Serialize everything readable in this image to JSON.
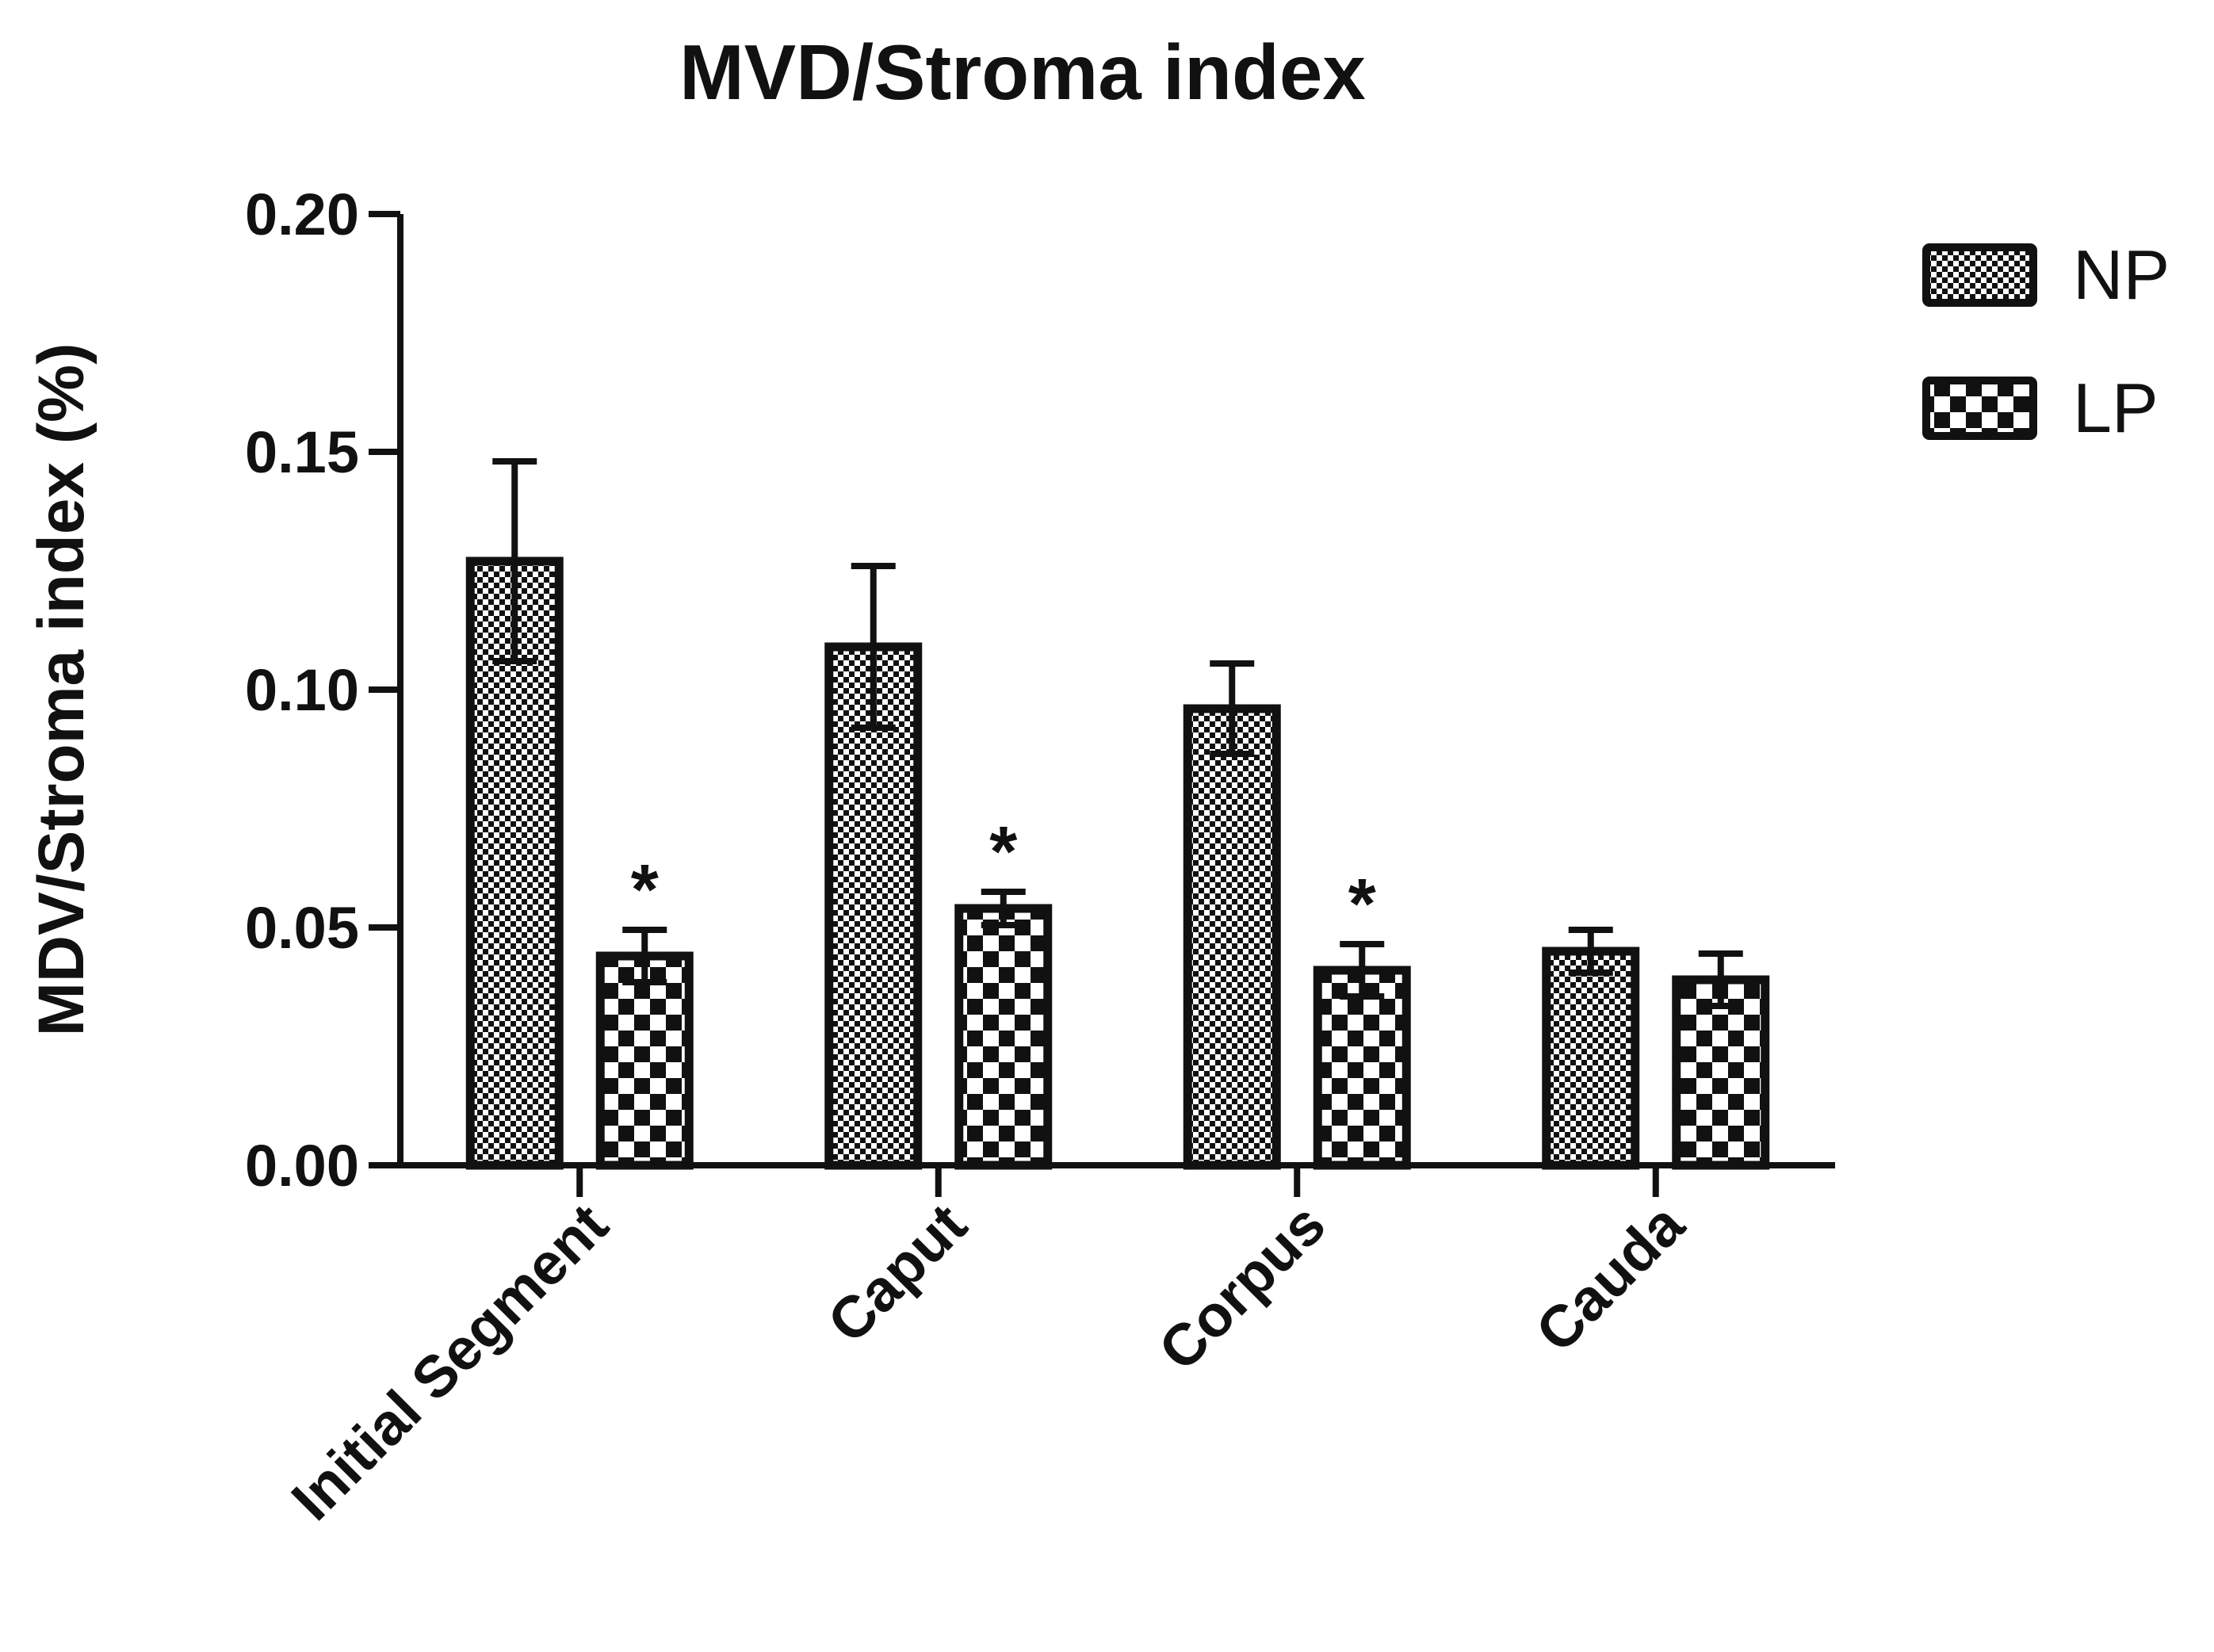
{
  "chart_data": {
    "type": "bar",
    "title": "MVD/Stroma index",
    "xlabel": "",
    "ylabel": "MDV/Stroma index (%)",
    "ylim": [
      0,
      0.2
    ],
    "yticks": [
      0.0,
      0.05,
      0.1,
      0.15,
      0.2
    ],
    "ytick_labels": [
      "0.00",
      "0.05",
      "0.10",
      "0.15",
      "0.20"
    ],
    "categories": [
      "Initial Segment",
      "Caput",
      "Corpus",
      "Cauda"
    ],
    "series": [
      {
        "name": "NP",
        "pattern": "fine-checker",
        "values": [
          0.127,
          0.109,
          0.096,
          0.045
        ],
        "errors": [
          0.021,
          0.017,
          0.0095,
          0.0045
        ],
        "significance": [
          "",
          "",
          "",
          ""
        ]
      },
      {
        "name": "LP",
        "pattern": "coarse-checker",
        "values": [
          0.044,
          0.054,
          0.041,
          0.039
        ],
        "errors": [
          0.0055,
          0.0035,
          0.0055,
          0.0055
        ],
        "significance": [
          "*",
          "*",
          "*",
          ""
        ]
      }
    ],
    "legend_position": "top-right",
    "grid": false,
    "colors": {
      "ink": "#111111",
      "background": "#ffffff"
    }
  }
}
